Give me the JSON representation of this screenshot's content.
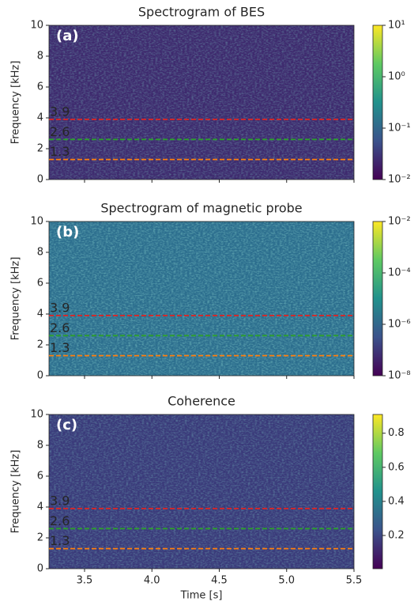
{
  "chart_data": [
    {
      "type": "spectrogram",
      "title": "Spectrogram of BES",
      "panel_label": "(a)",
      "ylabel": "Frequency [kHz]",
      "xlim": [
        3.236,
        5.5
      ],
      "xticks": [
        3.5,
        {
          "value": 4,
          "label": "4.0"
        },
        4.5,
        {
          "value": 5,
          "label": "5.0"
        },
        5.5
      ],
      "xticklabels": false,
      "ylim": [
        0,
        10
      ],
      "yticks": [
        0,
        2,
        4,
        6,
        8,
        10
      ],
      "lines": [
        {
          "value": 3.9,
          "color": "#d62728"
        },
        {
          "value": 2.6,
          "color": "#2ca02c"
        },
        {
          "value": 1.3,
          "color": "#ff7f0e"
        }
      ],
      "colorbar": {
        "scale": "log",
        "cmap": "viridis",
        "lim": [
          0.01,
          10
        ],
        "ticks": [
          {
            "value": 0.01,
            "label": "10⁻²"
          },
          {
            "value": 0.1,
            "label": "10⁻¹"
          },
          {
            "value": 1,
            "label": "10⁰"
          },
          {
            "value": 10,
            "label": "10¹"
          }
        ]
      }
    },
    {
      "type": "spectrogram",
      "title": "Spectrogram of magnetic probe",
      "panel_label": "(b)",
      "ylabel": "Frequency [kHz]",
      "xlim": [
        3.236,
        5.5
      ],
      "xticks": [
        3.5,
        {
          "value": 4,
          "label": "4.0"
        },
        4.5,
        {
          "value": 5,
          "label": "5.0"
        },
        5.5
      ],
      "xticklabels": false,
      "ylim": [
        0,
        10
      ],
      "yticks": [
        0,
        2,
        4,
        6,
        8,
        10
      ],
      "lines": [
        {
          "value": 3.9,
          "color": "#d62728"
        },
        {
          "value": 2.6,
          "color": "#2ca02c"
        },
        {
          "value": 1.3,
          "color": "#ff7f0e"
        }
      ],
      "colorbar": {
        "scale": "log",
        "cmap": "viridis",
        "lim": [
          1e-08,
          0.01
        ],
        "ticks": [
          {
            "value": 1e-08,
            "label": "10⁻⁸"
          },
          {
            "value": 1e-06,
            "label": "10⁻⁶"
          },
          {
            "value": 0.0001,
            "label": "10⁻⁴"
          },
          {
            "value": 0.01,
            "label": "10⁻²"
          }
        ]
      }
    },
    {
      "type": "spectrogram",
      "title": "Coherence",
      "panel_label": "(c)",
      "ylabel": "Frequency [kHz]",
      "xlabel": "Time [s]",
      "xlim": [
        3.236,
        5.5
      ],
      "xticks": [
        3.5,
        {
          "value": 4,
          "label": "4.0"
        },
        4.5,
        {
          "value": 5,
          "label": "5.0"
        },
        5.5
      ],
      "xticklabels": true,
      "ylim": [
        0,
        10
      ],
      "yticks": [
        0,
        2,
        4,
        6,
        8,
        10
      ],
      "lines": [
        {
          "value": 3.9,
          "color": "#d62728"
        },
        {
          "value": 2.6,
          "color": "#2ca02c"
        },
        {
          "value": 1.3,
          "color": "#ff7f0e"
        }
      ],
      "colorbar": {
        "scale": "linear",
        "cmap": "viridis",
        "lim": [
          0.005,
          0.91
        ],
        "ticks": [
          0.2,
          0.4,
          0.6,
          0.8
        ]
      }
    }
  ]
}
